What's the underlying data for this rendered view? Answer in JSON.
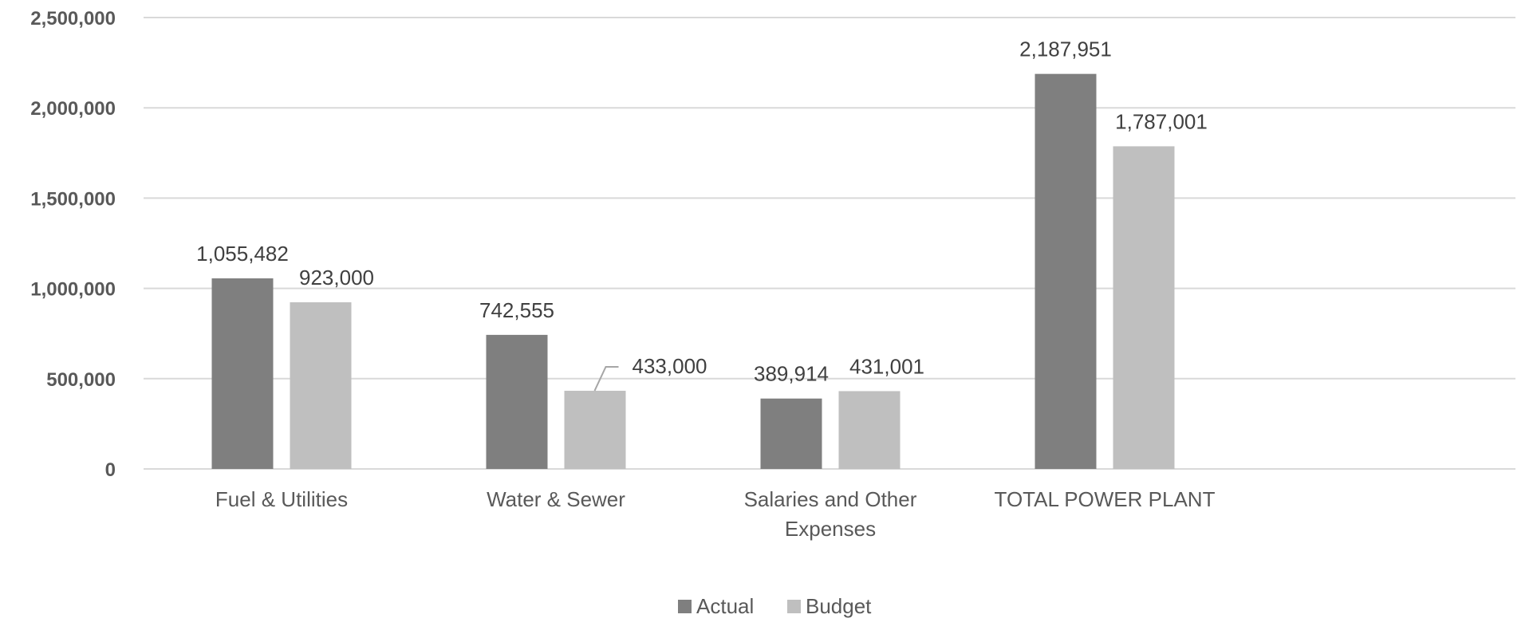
{
  "chart_data": {
    "type": "bar",
    "title": "",
    "xlabel": "",
    "ylabel": "",
    "ylim": [
      0,
      2500000
    ],
    "yticks": [
      0,
      500000,
      1000000,
      1500000,
      2000000,
      2500000
    ],
    "ytick_labels": [
      "0",
      "500,000",
      "1,000,000",
      "1,500,000",
      "2,000,000",
      "2,500,000"
    ],
    "grid": true,
    "legend_position": "bottom",
    "categories": [
      [
        "Fuel & Utilities"
      ],
      [
        "Water & Sewer"
      ],
      [
        "Salaries and Other",
        "Expenses"
      ],
      [
        "TOTAL POWER PLANT"
      ]
    ],
    "series": [
      {
        "name": "Actual",
        "color": "#7f7f7f",
        "values": [
          1055482,
          742555,
          389914,
          2187951
        ],
        "labels": [
          "1,055,482",
          "742,555",
          "389,914",
          "2,187,951"
        ]
      },
      {
        "name": "Budget",
        "color": "#bfbfbf",
        "values": [
          923000,
          433000,
          431001,
          1787001
        ],
        "labels": [
          "923,000",
          "433,000",
          "431,001",
          "1,787,001"
        ]
      }
    ]
  }
}
